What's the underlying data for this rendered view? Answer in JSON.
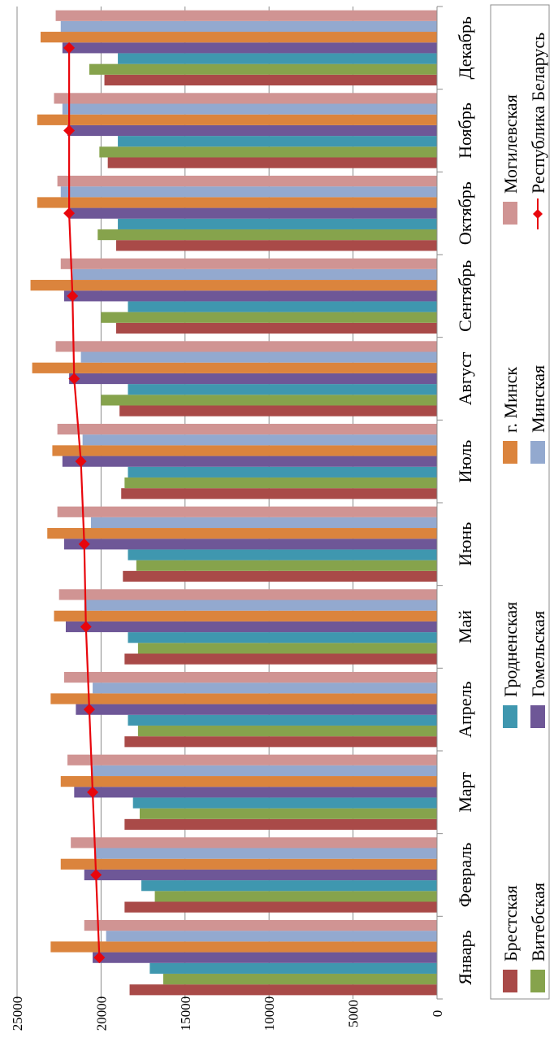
{
  "chart_data": {
    "type": "bar",
    "orientation": "vertical bars, figure rotated 90 degrees clockwise",
    "categories": [
      "Январь",
      "Февраль",
      "Март",
      "Апрель",
      "Май",
      "Июнь",
      "Июль",
      "Август",
      "Сентябрь",
      "Октябрь",
      "Ноябрь",
      "Декабрь"
    ],
    "ylim": [
      0,
      25000
    ],
    "yticks": [
      0,
      5000,
      10000,
      15000,
      20000,
      25000
    ],
    "grid": true,
    "legend_position": "right",
    "series": [
      {
        "name": "Брестская",
        "type": "bar",
        "color": "#A94A48",
        "values": [
          18300,
          18600,
          18600,
          18600,
          18600,
          18700,
          18800,
          18900,
          19100,
          19100,
          19600,
          19800
        ]
      },
      {
        "name": "Витебская",
        "type": "bar",
        "color": "#86A34C",
        "values": [
          16300,
          16800,
          17700,
          17800,
          17800,
          17900,
          18600,
          20000,
          20000,
          20200,
          20100,
          20700
        ]
      },
      {
        "name": "Гродненская",
        "type": "bar",
        "color": "#3F97AF",
        "values": [
          17100,
          17600,
          18100,
          18400,
          18400,
          18400,
          18400,
          18400,
          18400,
          19000,
          19000,
          19000
        ]
      },
      {
        "name": "Гомельская",
        "type": "bar",
        "color": "#6E5797",
        "values": [
          20500,
          21000,
          21600,
          21500,
          22100,
          22200,
          22300,
          21900,
          22200,
          21900,
          22000,
          22300
        ]
      },
      {
        "name": "г. Минск",
        "type": "bar",
        "color": "#DB843D",
        "values": [
          23000,
          22400,
          22400,
          23000,
          22800,
          23200,
          22900,
          24100,
          24200,
          23800,
          23800,
          23600
        ]
      },
      {
        "name": "Минская",
        "type": "bar",
        "color": "#93A9CF",
        "values": [
          19700,
          20400,
          20500,
          20500,
          21000,
          20600,
          21100,
          21200,
          21700,
          22400,
          22300,
          22400
        ]
      },
      {
        "name": "Могилевская",
        "type": "bar",
        "color": "#D09493",
        "values": [
          21000,
          21800,
          22000,
          22200,
          22500,
          22600,
          22600,
          22700,
          22400,
          22600,
          22800,
          22700
        ]
      },
      {
        "name": "Республика Беларусь",
        "type": "line",
        "color": "#E8060C",
        "values": [
          20100,
          20300,
          20500,
          20700,
          20900,
          21000,
          21200,
          21600,
          21700,
          21900,
          21900,
          21900
        ]
      }
    ]
  }
}
